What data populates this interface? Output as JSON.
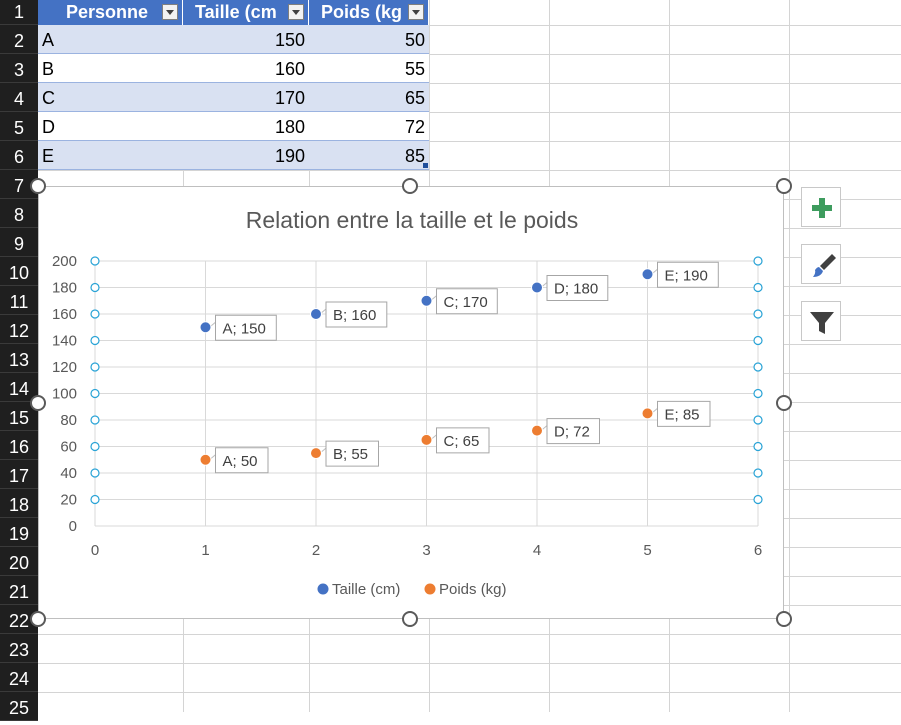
{
  "sheet": {
    "row_numbers": [
      "1",
      "2",
      "3",
      "4",
      "5",
      "6",
      "7",
      "8",
      "9",
      "10",
      "11",
      "12",
      "13",
      "14",
      "15",
      "16",
      "17",
      "18",
      "19",
      "20",
      "21",
      "22",
      "23",
      "24",
      "25"
    ],
    "table": {
      "headers": [
        "Personne",
        "Taille (cm",
        "Poids (kg"
      ],
      "rows": [
        [
          "A",
          "150",
          "50"
        ],
        [
          "B",
          "160",
          "55"
        ],
        [
          "C",
          "170",
          "65"
        ],
        [
          "D",
          "180",
          "72"
        ],
        [
          "E",
          "190",
          "85"
        ]
      ]
    },
    "colors": {
      "header_fill": "#4472c4",
      "band_fill": "#d9e1f2",
      "row_header_fill": "#1f1f1f"
    }
  },
  "chart_data": {
    "type": "scatter",
    "title": "Relation entre la taille et le poids",
    "xlim": [
      0,
      6
    ],
    "ylim": [
      0,
      200
    ],
    "x_ticks": [
      "0",
      "1",
      "2",
      "3",
      "4",
      "5",
      "6"
    ],
    "y_ticks": [
      "0",
      "20",
      "40",
      "60",
      "80",
      "100",
      "120",
      "140",
      "160",
      "180",
      "200"
    ],
    "grid": true,
    "legend_position": "bottom",
    "series": [
      {
        "name": "Taille (cm)",
        "color": "#4472c4",
        "x": [
          1,
          2,
          3,
          4,
          5
        ],
        "y": [
          150,
          160,
          170,
          180,
          190
        ],
        "labels": [
          "A; 150",
          "B; 160",
          "C; 170",
          "D; 180",
          "E; 190"
        ]
      },
      {
        "name": "Poids (kg)",
        "color": "#ed7d31",
        "x": [
          1,
          2,
          3,
          4,
          5
        ],
        "y": [
          50,
          55,
          65,
          72,
          85
        ],
        "labels": [
          "A; 50",
          "B; 55",
          "C; 65",
          "D; 72",
          "E; 85"
        ]
      }
    ]
  },
  "side_buttons": [
    {
      "name": "chart-elements-button",
      "icon": "plus-icon"
    },
    {
      "name": "chart-styles-button",
      "icon": "paintbrush-icon"
    },
    {
      "name": "chart-filters-button",
      "icon": "funnel-icon"
    }
  ]
}
